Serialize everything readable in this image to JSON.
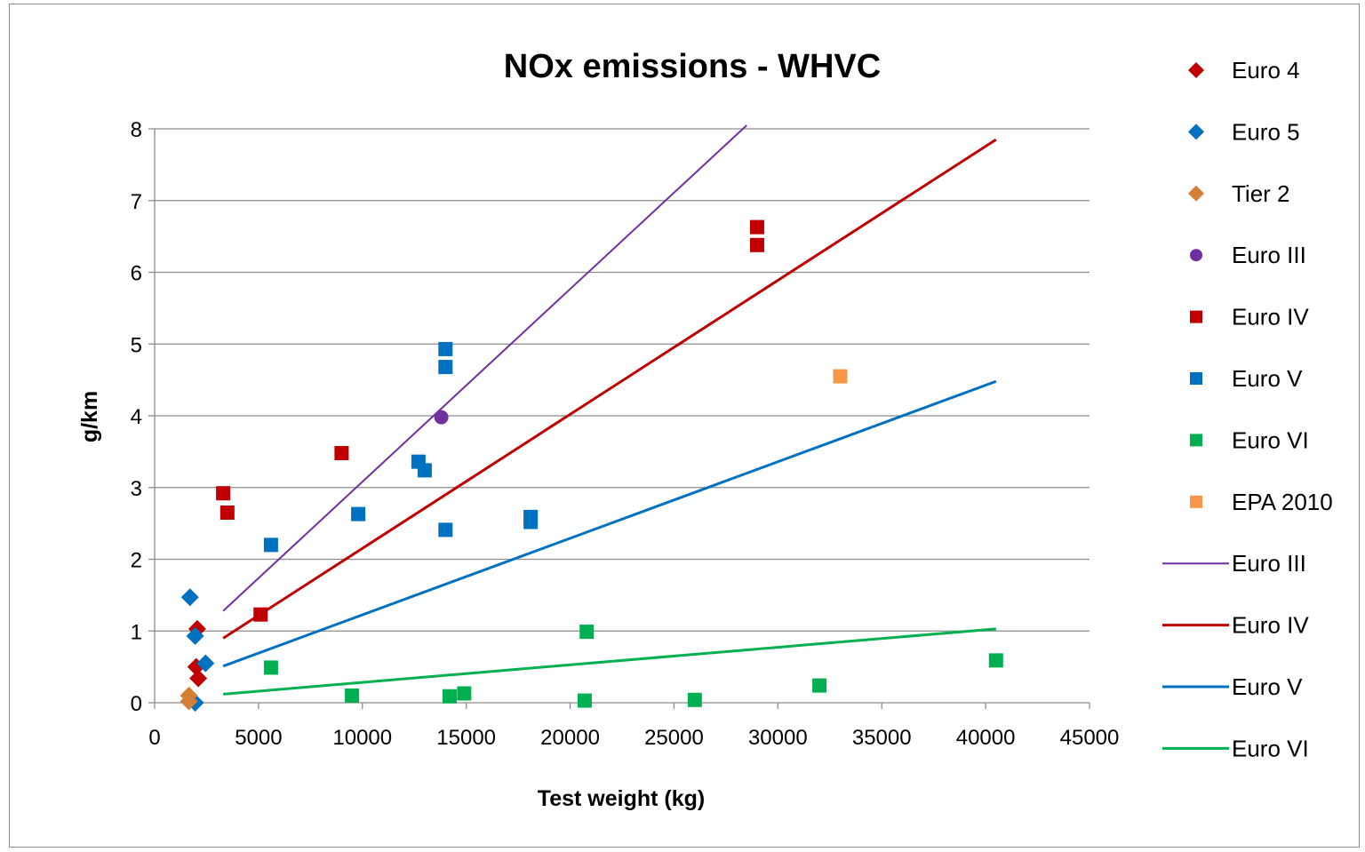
{
  "chart_data": {
    "type": "scatter",
    "title": "NOx emissions - WHVC",
    "xlabel": "Test weight (kg)",
    "ylabel": "g/km",
    "xlim": [
      0,
      45000
    ],
    "ylim": [
      0,
      8
    ],
    "xticks": [
      0,
      5000,
      10000,
      15000,
      20000,
      25000,
      30000,
      35000,
      40000,
      45000
    ],
    "yticks": [
      0,
      1,
      2,
      3,
      4,
      5,
      6,
      7,
      8
    ],
    "grid": "horizontal",
    "legend_position": "right",
    "series": [
      {
        "name": "Euro 4",
        "kind": "scatter",
        "marker": "diamond",
        "color": "#c00000",
        "points": [
          [
            2050,
            1.03
          ],
          [
            2000,
            0.5
          ],
          [
            2100,
            0.34
          ]
        ]
      },
      {
        "name": "Euro 5",
        "kind": "scatter",
        "marker": "diamond",
        "color": "#0070c0",
        "points": [
          [
            1700,
            1.47
          ],
          [
            1950,
            0.93
          ],
          [
            2450,
            0.55
          ],
          [
            1950,
            0.0
          ]
        ]
      },
      {
        "name": "Tier 2",
        "kind": "scatter",
        "marker": "diamond",
        "color": "#d47e36",
        "points": [
          [
            1650,
            0.1
          ],
          [
            1650,
            0.02
          ]
        ]
      },
      {
        "name": "Euro III",
        "kind": "scatter",
        "marker": "circle",
        "color": "#7030a0",
        "points": [
          [
            13800,
            3.98
          ]
        ]
      },
      {
        "name": "Euro IV",
        "kind": "scatter",
        "marker": "square",
        "color": "#c00000",
        "points": [
          [
            3300,
            2.92
          ],
          [
            3500,
            2.65
          ],
          [
            5100,
            1.23
          ],
          [
            9000,
            3.48
          ],
          [
            29000,
            6.63
          ],
          [
            29000,
            6.38
          ]
        ]
      },
      {
        "name": "Euro V",
        "kind": "scatter",
        "marker": "square",
        "color": "#0070c0",
        "points": [
          [
            5600,
            2.2
          ],
          [
            9800,
            2.63
          ],
          [
            12700,
            3.36
          ],
          [
            13000,
            3.24
          ],
          [
            14000,
            4.93
          ],
          [
            14000,
            4.68
          ],
          [
            14000,
            2.41
          ],
          [
            18100,
            2.59
          ],
          [
            18100,
            2.52
          ]
        ]
      },
      {
        "name": "Euro VI",
        "kind": "scatter",
        "marker": "square",
        "color": "#00b050",
        "points": [
          [
            5600,
            0.49
          ],
          [
            9500,
            0.1
          ],
          [
            14200,
            0.09
          ],
          [
            14900,
            0.13
          ],
          [
            20800,
            0.99
          ],
          [
            20700,
            0.03
          ],
          [
            26000,
            0.04
          ],
          [
            32000,
            0.24
          ],
          [
            40500,
            0.59
          ]
        ]
      },
      {
        "name": "EPA 2010",
        "kind": "scatter",
        "marker": "square",
        "color": "#f79646",
        "points": [
          [
            33000,
            4.55
          ]
        ]
      },
      {
        "name": "Euro III",
        "kind": "line",
        "color": "#7030a0",
        "width": 2,
        "points": [
          [
            3300,
            1.28
          ],
          [
            28500,
            8.05
          ]
        ]
      },
      {
        "name": "Euro IV",
        "kind": "line",
        "color": "#c00000",
        "width": 3,
        "points": [
          [
            3300,
            0.9
          ],
          [
            40500,
            7.85
          ]
        ]
      },
      {
        "name": "Euro V",
        "kind": "line",
        "color": "#0070c0",
        "width": 3,
        "points": [
          [
            3300,
            0.51
          ],
          [
            40500,
            4.48
          ]
        ]
      },
      {
        "name": "Euro VI",
        "kind": "line",
        "color": "#00b050",
        "width": 3,
        "points": [
          [
            3300,
            0.12
          ],
          [
            40500,
            1.03
          ]
        ]
      }
    ]
  }
}
